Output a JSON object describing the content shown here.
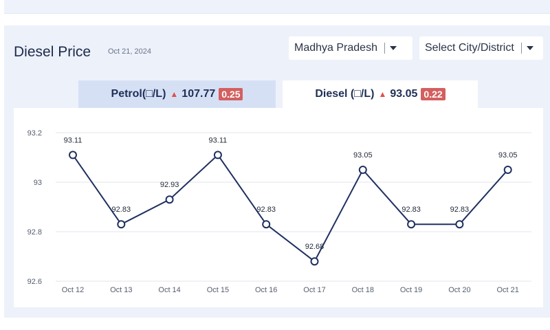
{
  "header": {
    "title": "Diesel Price",
    "date": "Oct 21, 2024"
  },
  "filters": {
    "state": "Madhya Pradesh",
    "city": "Select City/District"
  },
  "tabs": {
    "petrol": {
      "label": "Petrol(□/L)",
      "price": "107.77",
      "change": "0.25",
      "direction": "up"
    },
    "diesel": {
      "label": "Diesel (□/L)",
      "price": "93.05",
      "change": "0.22",
      "direction": "up"
    }
  },
  "colors": {
    "line": "#1f3060",
    "badge": "#d35f5f",
    "arrow": "#d9534f",
    "active_tab": "#ffffff",
    "inactive_tab": "#d6e0f5"
  },
  "chart_data": {
    "type": "line",
    "categories": [
      "Oct 12",
      "Oct 13",
      "Oct 14",
      "Oct 15",
      "Oct 16",
      "Oct 17",
      "Oct 18",
      "Oct 19",
      "Oct 20",
      "Oct 21"
    ],
    "values": [
      93.11,
      92.83,
      92.93,
      93.11,
      92.83,
      92.68,
      93.05,
      92.83,
      92.83,
      93.05
    ],
    "yticks": [
      "92.6",
      "92.8",
      "93",
      "93.2"
    ],
    "ylim": [
      92.6,
      93.2
    ],
    "grid": true,
    "title": "",
    "xlabel": "",
    "ylabel": ""
  }
}
